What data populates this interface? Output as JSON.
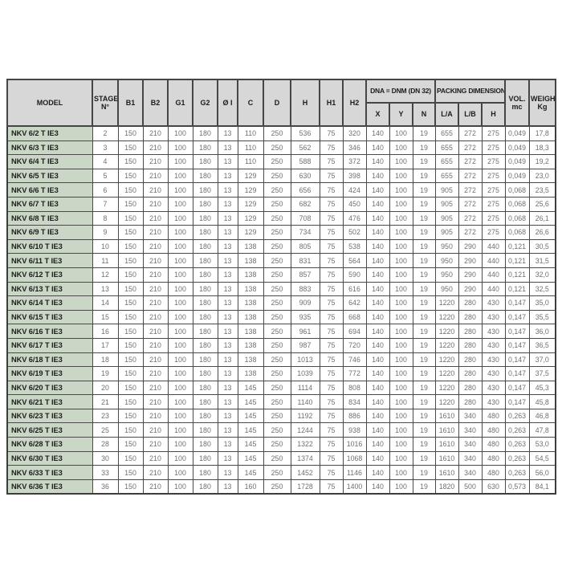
{
  "table": {
    "header": {
      "model": "MODEL",
      "stage": "STAGE N°",
      "b1": "B1",
      "b2": "B2",
      "g1": "G1",
      "g2": "G2",
      "oi": "Ø I",
      "c": "C",
      "d": "D",
      "h": "H",
      "h1": "H1",
      "h2": "H2",
      "dna_group": "DNA = DNM (DN 32)",
      "packing_group": "PACKING DIMENSIONS",
      "x": "X",
      "y": "Y",
      "n": "N",
      "la": "L/A",
      "lb": "L/B",
      "h_pack": "H",
      "vol": "VOL. mc",
      "weight": "WEIGHT Kg"
    },
    "rows": [
      [
        "NKV 6/2 T IE3",
        "2",
        "150",
        "210",
        "100",
        "180",
        "13",
        "110",
        "250",
        "536",
        "75",
        "320",
        "140",
        "100",
        "19",
        "655",
        "272",
        "275",
        "0,049",
        "17,8"
      ],
      [
        "NKV 6/3 T IE3",
        "3",
        "150",
        "210",
        "100",
        "180",
        "13",
        "110",
        "250",
        "562",
        "75",
        "346",
        "140",
        "100",
        "19",
        "655",
        "272",
        "275",
        "0,049",
        "18,3"
      ],
      [
        "NKV 6/4 T IE3",
        "4",
        "150",
        "210",
        "100",
        "180",
        "13",
        "110",
        "250",
        "588",
        "75",
        "372",
        "140",
        "100",
        "19",
        "655",
        "272",
        "275",
        "0,049",
        "19,2"
      ],
      [
        "NKV 6/5 T IE3",
        "5",
        "150",
        "210",
        "100",
        "180",
        "13",
        "129",
        "250",
        "630",
        "75",
        "398",
        "140",
        "100",
        "19",
        "655",
        "272",
        "275",
        "0,049",
        "23,0"
      ],
      [
        "NKV 6/6 T IE3",
        "6",
        "150",
        "210",
        "100",
        "180",
        "13",
        "129",
        "250",
        "656",
        "75",
        "424",
        "140",
        "100",
        "19",
        "905",
        "272",
        "275",
        "0,068",
        "23,5"
      ],
      [
        "NKV 6/7 T IE3",
        "7",
        "150",
        "210",
        "100",
        "180",
        "13",
        "129",
        "250",
        "682",
        "75",
        "450",
        "140",
        "100",
        "19",
        "905",
        "272",
        "275",
        "0,068",
        "25,6"
      ],
      [
        "NKV 6/8 T IE3",
        "8",
        "150",
        "210",
        "100",
        "180",
        "13",
        "129",
        "250",
        "708",
        "75",
        "476",
        "140",
        "100",
        "19",
        "905",
        "272",
        "275",
        "0,068",
        "26,1"
      ],
      [
        "NKV 6/9 T IE3",
        "9",
        "150",
        "210",
        "100",
        "180",
        "13",
        "129",
        "250",
        "734",
        "75",
        "502",
        "140",
        "100",
        "19",
        "905",
        "272",
        "275",
        "0,068",
        "26,6"
      ],
      [
        "NKV 6/10 T IE3",
        "10",
        "150",
        "210",
        "100",
        "180",
        "13",
        "138",
        "250",
        "805",
        "75",
        "538",
        "140",
        "100",
        "19",
        "950",
        "290",
        "440",
        "0,121",
        "30,5"
      ],
      [
        "NKV 6/11 T IE3",
        "11",
        "150",
        "210",
        "100",
        "180",
        "13",
        "138",
        "250",
        "831",
        "75",
        "564",
        "140",
        "100",
        "19",
        "950",
        "290",
        "440",
        "0,121",
        "31,5"
      ],
      [
        "NKV 6/12 T IE3",
        "12",
        "150",
        "210",
        "100",
        "180",
        "13",
        "138",
        "250",
        "857",
        "75",
        "590",
        "140",
        "100",
        "19",
        "950",
        "290",
        "440",
        "0,121",
        "32,0"
      ],
      [
        "NKV 6/13 T IE3",
        "13",
        "150",
        "210",
        "100",
        "180",
        "13",
        "138",
        "250",
        "883",
        "75",
        "616",
        "140",
        "100",
        "19",
        "950",
        "290",
        "440",
        "0,121",
        "32,5"
      ],
      [
        "NKV 6/14 T IE3",
        "14",
        "150",
        "210",
        "100",
        "180",
        "13",
        "138",
        "250",
        "909",
        "75",
        "642",
        "140",
        "100",
        "19",
        "1220",
        "280",
        "430",
        "0,147",
        "35,0"
      ],
      [
        "NKV 6/15 T IE3",
        "15",
        "150",
        "210",
        "100",
        "180",
        "13",
        "138",
        "250",
        "935",
        "75",
        "668",
        "140",
        "100",
        "19",
        "1220",
        "280",
        "430",
        "0,147",
        "35,5"
      ],
      [
        "NKV 6/16 T IE3",
        "16",
        "150",
        "210",
        "100",
        "180",
        "13",
        "138",
        "250",
        "961",
        "75",
        "694",
        "140",
        "100",
        "19",
        "1220",
        "280",
        "430",
        "0,147",
        "36,0"
      ],
      [
        "NKV 6/17 T IE3",
        "17",
        "150",
        "210",
        "100",
        "180",
        "13",
        "138",
        "250",
        "987",
        "75",
        "720",
        "140",
        "100",
        "19",
        "1220",
        "280",
        "430",
        "0,147",
        "36,5"
      ],
      [
        "NKV 6/18 T IE3",
        "18",
        "150",
        "210",
        "100",
        "180",
        "13",
        "138",
        "250",
        "1013",
        "75",
        "746",
        "140",
        "100",
        "19",
        "1220",
        "280",
        "430",
        "0,147",
        "37,0"
      ],
      [
        "NKV 6/19 T IE3",
        "19",
        "150",
        "210",
        "100",
        "180",
        "13",
        "138",
        "250",
        "1039",
        "75",
        "772",
        "140",
        "100",
        "19",
        "1220",
        "280",
        "430",
        "0,147",
        "37,5"
      ],
      [
        "NKV 6/20 T IE3",
        "20",
        "150",
        "210",
        "100",
        "180",
        "13",
        "145",
        "250",
        "1114",
        "75",
        "808",
        "140",
        "100",
        "19",
        "1220",
        "280",
        "430",
        "0,147",
        "45,3"
      ],
      [
        "NKV 6/21 T IE3",
        "21",
        "150",
        "210",
        "100",
        "180",
        "13",
        "145",
        "250",
        "1140",
        "75",
        "834",
        "140",
        "100",
        "19",
        "1220",
        "280",
        "430",
        "0,147",
        "45,8"
      ],
      [
        "NKV 6/23 T IE3",
        "23",
        "150",
        "210",
        "100",
        "180",
        "13",
        "145",
        "250",
        "1192",
        "75",
        "886",
        "140",
        "100",
        "19",
        "1610",
        "340",
        "480",
        "0,263",
        "46,8"
      ],
      [
        "NKV 6/25 T IE3",
        "25",
        "150",
        "210",
        "100",
        "180",
        "13",
        "145",
        "250",
        "1244",
        "75",
        "938",
        "140",
        "100",
        "19",
        "1610",
        "340",
        "480",
        "0,263",
        "47,8"
      ],
      [
        "NKV 6/28 T IE3",
        "28",
        "150",
        "210",
        "100",
        "180",
        "13",
        "145",
        "250",
        "1322",
        "75",
        "1016",
        "140",
        "100",
        "19",
        "1610",
        "340",
        "480",
        "0,263",
        "53,0"
      ],
      [
        "NKV 6/30 T IE3",
        "30",
        "150",
        "210",
        "100",
        "180",
        "13",
        "145",
        "250",
        "1374",
        "75",
        "1068",
        "140",
        "100",
        "19",
        "1610",
        "340",
        "480",
        "0,263",
        "54,5"
      ],
      [
        "NKV 6/33 T IE3",
        "33",
        "150",
        "210",
        "100",
        "180",
        "13",
        "145",
        "250",
        "1452",
        "75",
        "1146",
        "140",
        "100",
        "19",
        "1610",
        "340",
        "480",
        "0,263",
        "56,0"
      ],
      [
        "NKV 6/36 T IE3",
        "36",
        "150",
        "210",
        "100",
        "180",
        "13",
        "160",
        "250",
        "1728",
        "75",
        "1400",
        "140",
        "100",
        "19",
        "1820",
        "500",
        "630",
        "0,573",
        "84,1"
      ]
    ]
  },
  "colors": {
    "model_cell_bg": "#cbd7c6",
    "header_bg": "#d7d7d7",
    "border": "#4a4a4a",
    "data_text": "#6f6f6f"
  }
}
